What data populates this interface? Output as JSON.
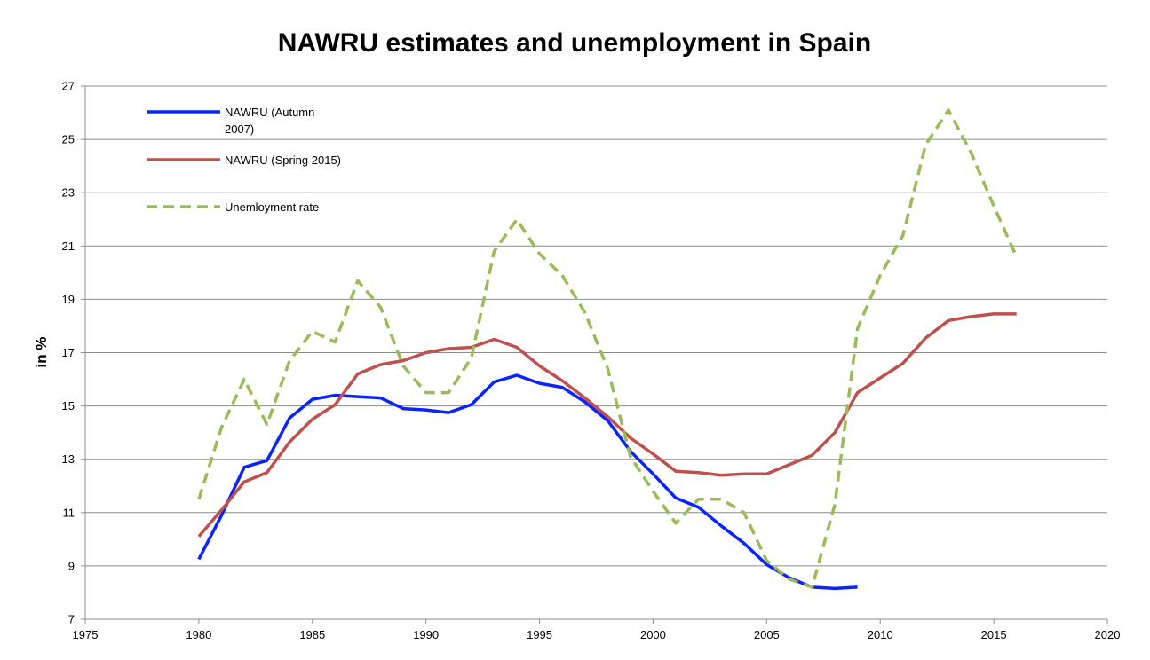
{
  "chart_data": {
    "type": "line",
    "title": "NAWRU estimates and unemployment in Spain",
    "xlabel": "",
    "ylabel": "in %",
    "xlim": [
      1975,
      2020
    ],
    "ylim": [
      7,
      27
    ],
    "x_ticks": [
      1975,
      1980,
      1985,
      1990,
      1995,
      2000,
      2005,
      2010,
      2015,
      2020
    ],
    "y_ticks": [
      7,
      9,
      11,
      13,
      15,
      17,
      19,
      21,
      23,
      25,
      27
    ],
    "grid": true,
    "legend_position": "top-left",
    "series": [
      {
        "name": "NAWRU (Autumn 2007)",
        "legend_lines": [
          "NAWRU (Autumn",
          "2007)"
        ],
        "color": "#0b24fb",
        "dash": "solid",
        "x": [
          1980,
          1981,
          1982,
          1983,
          1984,
          1985,
          1986,
          1987,
          1988,
          1989,
          1990,
          1991,
          1992,
          1993,
          1994,
          1995,
          1996,
          1997,
          1998,
          1999,
          2000,
          2001,
          2002,
          2003,
          2004,
          2005,
          2006,
          2007,
          2008,
          2009
        ],
        "y": [
          9.25,
          10.9,
          12.7,
          12.95,
          14.55,
          15.25,
          15.4,
          15.35,
          15.3,
          14.9,
          14.85,
          14.75,
          15.05,
          15.9,
          16.15,
          15.85,
          15.7,
          15.15,
          14.45,
          13.3,
          12.45,
          11.55,
          11.2,
          10.5,
          9.85,
          9.05,
          8.55,
          8.2,
          8.15,
          8.2
        ]
      },
      {
        "name": "NAWRU (Spring 2015)",
        "legend_lines": [
          "NAWRU (Spring 2015)"
        ],
        "color": "#c0504d",
        "dash": "solid",
        "x": [
          1980,
          1981,
          1982,
          1983,
          1984,
          1985,
          1986,
          1987,
          1988,
          1989,
          1990,
          1991,
          1992,
          1993,
          1994,
          1995,
          1996,
          1997,
          1998,
          1999,
          2000,
          2001,
          2002,
          2003,
          2004,
          2005,
          2006,
          2007,
          2008,
          2009,
          2010,
          2011,
          2012,
          2013,
          2014,
          2015,
          2016
        ],
        "y": [
          10.1,
          11.1,
          12.15,
          12.5,
          13.65,
          14.5,
          15.05,
          16.2,
          16.55,
          16.7,
          17.0,
          17.15,
          17.2,
          17.5,
          17.2,
          16.5,
          15.95,
          15.3,
          14.6,
          13.8,
          13.2,
          12.55,
          12.5,
          12.4,
          12.45,
          12.45,
          12.8,
          13.15,
          14.0,
          15.5,
          16.05,
          16.6,
          17.55,
          18.2,
          18.35,
          18.45,
          18.45
        ]
      },
      {
        "name": "Unemloyment rate",
        "legend_lines": [
          "Unemloyment rate"
        ],
        "color": "#9bbb59",
        "dash": "dashed",
        "x": [
          1980,
          1981,
          1982,
          1983,
          1984,
          1985,
          1986,
          1987,
          1988,
          1989,
          1990,
          1991,
          1992,
          1993,
          1994,
          1995,
          1996,
          1997,
          1998,
          1999,
          2000,
          2001,
          2002,
          2003,
          2004,
          2005,
          2006,
          2007,
          2008,
          2009,
          2010,
          2011,
          2012,
          2013,
          2014,
          2015,
          2016
        ],
        "y": [
          11.5,
          14.2,
          16.0,
          14.3,
          16.7,
          17.8,
          17.4,
          19.7,
          18.7,
          16.5,
          15.5,
          15.5,
          16.8,
          20.8,
          22.0,
          20.7,
          19.9,
          18.5,
          16.4,
          13.1,
          11.8,
          10.6,
          11.5,
          11.5,
          11.0,
          9.2,
          8.5,
          8.2,
          11.3,
          17.9,
          19.9,
          21.4,
          24.8,
          26.1,
          24.5,
          22.5,
          20.6
        ]
      }
    ]
  }
}
